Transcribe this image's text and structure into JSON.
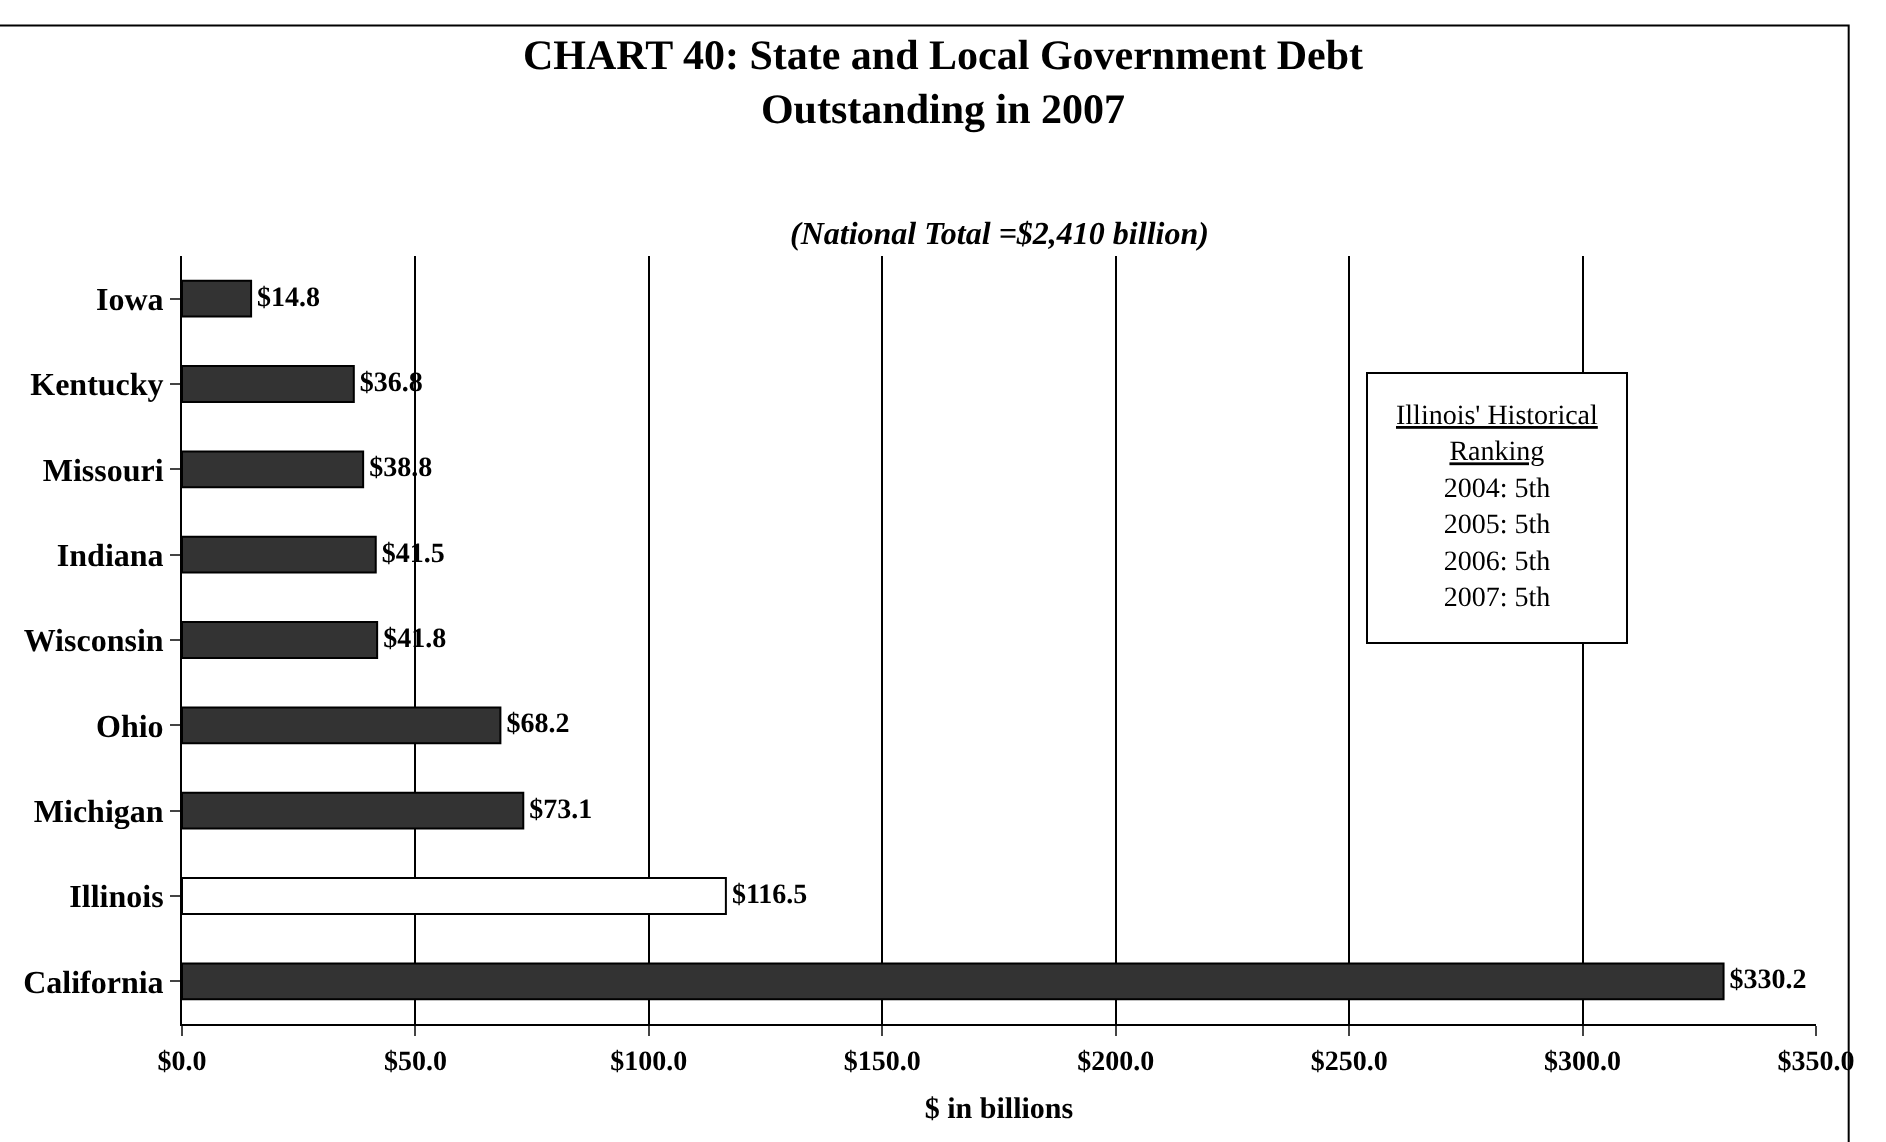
{
  "chart_data": {
    "type": "bar",
    "orientation": "horizontal",
    "title": "CHART 40: State and Local Government Debt Outstanding in 2007",
    "subtitle": "(National Total =$2,410 billion)",
    "xlabel": "$ in billions",
    "categories": [
      "Iowa",
      "Kentucky",
      "Missouri",
      "Indiana",
      "Wisconsin",
      "Ohio",
      "Michigan",
      "Illinois",
      "California"
    ],
    "values": [
      14.8,
      36.8,
      38.8,
      41.5,
      41.8,
      68.2,
      73.1,
      116.5,
      330.2
    ],
    "colors": [
      "#333333",
      "#333333",
      "#333333",
      "#333333",
      "#333333",
      "#333333",
      "#333333",
      "#ffffff",
      "#333333"
    ],
    "value_labels": [
      "$14.8",
      "$36.8",
      "$38.8",
      "$41.5",
      "$41.8",
      "$68.2",
      "$73.1",
      "$116.5",
      "$330.2"
    ],
    "xlim": [
      0,
      350
    ],
    "xticks": [
      {
        "value": 0,
        "label": "$0.0"
      },
      {
        "value": 50,
        "label": "$50.0"
      },
      {
        "value": 100,
        "label": "$100.0"
      },
      {
        "value": 150,
        "label": "$150.0"
      },
      {
        "value": 200,
        "label": "$200.0"
      },
      {
        "value": 250,
        "label": "$250.0"
      },
      {
        "value": 300,
        "label": "$300.0"
      },
      {
        "value": 350,
        "label": "$350.0"
      }
    ],
    "grid": "x",
    "annotations": [
      "Illinois' Historical Ranking",
      "2004: 5th",
      "2005: 5th",
      "2006: 5th",
      "2007: 5th"
    ]
  }
}
